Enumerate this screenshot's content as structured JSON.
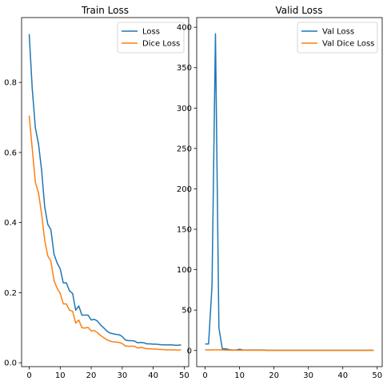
{
  "colors": {
    "series1": "#1f77b4",
    "series2": "#ff7f0e"
  },
  "chart_data": [
    {
      "type": "line",
      "title": "Train Loss",
      "xlabel": "",
      "ylabel": "",
      "xlim": [
        -2.45,
        51.45
      ],
      "ylim": [
        -0.011,
        0.985
      ],
      "xticks": [
        0,
        10,
        20,
        30,
        40,
        50
      ],
      "yticks": [
        0.0,
        0.2,
        0.4,
        0.6,
        0.8
      ],
      "xtick_labels": [
        "0",
        "10",
        "20",
        "30",
        "40",
        "50"
      ],
      "ytick_labels": [
        "0.0",
        "0.2",
        "0.4",
        "0.6",
        "0.8"
      ],
      "legend_position": "upper right",
      "x": [
        0,
        1,
        2,
        3,
        4,
        5,
        6,
        7,
        8,
        9,
        10,
        11,
        12,
        13,
        14,
        15,
        16,
        17,
        18,
        19,
        20,
        21,
        22,
        23,
        24,
        25,
        26,
        27,
        28,
        29,
        30,
        31,
        32,
        33,
        34,
        35,
        36,
        37,
        38,
        39,
        40,
        41,
        42,
        43,
        44,
        45,
        46,
        47,
        48,
        49
      ],
      "series": [
        {
          "name": "Loss",
          "values": [
            0.938,
            0.78,
            0.67,
            0.625,
            0.55,
            0.445,
            0.395,
            0.38,
            0.31,
            0.285,
            0.268,
            0.228,
            0.228,
            0.205,
            0.198,
            0.15,
            0.162,
            0.136,
            0.136,
            0.136,
            0.122,
            0.124,
            0.119,
            0.108,
            0.1,
            0.091,
            0.085,
            0.083,
            0.081,
            0.08,
            0.075,
            0.065,
            0.063,
            0.063,
            0.062,
            0.057,
            0.058,
            0.057,
            0.054,
            0.054,
            0.053,
            0.053,
            0.052,
            0.051,
            0.051,
            0.051,
            0.051,
            0.05,
            0.05,
            0.051
          ]
        },
        {
          "name": "Dice Loss",
          "values": [
            0.705,
            0.61,
            0.515,
            0.485,
            0.425,
            0.35,
            0.305,
            0.29,
            0.235,
            0.213,
            0.198,
            0.168,
            0.168,
            0.15,
            0.147,
            0.113,
            0.122,
            0.1,
            0.099,
            0.101,
            0.091,
            0.092,
            0.086,
            0.078,
            0.072,
            0.066,
            0.062,
            0.06,
            0.059,
            0.058,
            0.055,
            0.048,
            0.047,
            0.047,
            0.047,
            0.042,
            0.044,
            0.042,
            0.04,
            0.04,
            0.039,
            0.039,
            0.038,
            0.038,
            0.037,
            0.037,
            0.037,
            0.037,
            0.036,
            0.037
          ]
        }
      ]
    },
    {
      "type": "line",
      "title": "Valid Loss",
      "xlabel": "",
      "ylabel": "",
      "xlim": [
        -2.45,
        51.45
      ],
      "ylim": [
        -20,
        412
      ],
      "xticks": [
        0,
        10,
        20,
        30,
        40,
        50
      ],
      "yticks": [
        0,
        50,
        100,
        150,
        200,
        250,
        300,
        350,
        400
      ],
      "xtick_labels": [
        "0",
        "10",
        "20",
        "30",
        "40",
        "50"
      ],
      "ytick_labels": [
        "0",
        "50",
        "100",
        "150",
        "200",
        "250",
        "300",
        "350",
        "400"
      ],
      "legend_position": "upper right",
      "x": [
        0,
        1,
        2,
        3,
        4,
        5,
        6,
        7,
        8,
        9,
        10,
        11,
        12,
        13,
        14,
        15,
        16,
        17,
        18,
        19,
        20,
        21,
        22,
        23,
        24,
        25,
        26,
        27,
        28,
        29,
        30,
        31,
        32,
        33,
        34,
        35,
        36,
        37,
        38,
        39,
        40,
        41,
        42,
        43,
        44,
        45,
        46,
        47,
        48,
        49
      ],
      "series": [
        {
          "name": "Val Loss",
          "values": [
            8,
            8,
            80,
            392,
            28,
            2,
            2,
            1,
            0.5,
            0.5,
            1.5,
            0.5,
            0.5,
            0.5,
            0.5,
            0.5,
            0.5,
            0.5,
            0.3,
            0.3,
            0.3,
            0.3,
            0.3,
            0.3,
            0.3,
            0.3,
            0.3,
            0.3,
            0.3,
            0.3,
            0.3,
            0.3,
            0.3,
            0.3,
            0.3,
            0.3,
            0.3,
            0.3,
            0.3,
            0.3,
            0.3,
            0.3,
            0.3,
            0.3,
            0.3,
            0.3,
            0.3,
            0.3,
            0.3,
            0.3
          ]
        },
        {
          "name": "Val Dice Loss",
          "values": [
            0.7,
            0.7,
            0.7,
            0.7,
            0.7,
            0.6,
            0.5,
            0.4,
            0.3,
            0.3,
            0.3,
            0.3,
            0.3,
            0.3,
            0.3,
            0.3,
            0.3,
            0.3,
            0.2,
            0.2,
            0.2,
            0.2,
            0.2,
            0.2,
            0.2,
            0.2,
            0.2,
            0.2,
            0.2,
            0.2,
            0.2,
            0.2,
            0.2,
            0.2,
            0.2,
            0.2,
            0.2,
            0.2,
            0.2,
            0.2,
            0.2,
            0.2,
            0.2,
            0.2,
            0.2,
            0.2,
            0.2,
            0.2,
            0.2,
            0.2
          ]
        }
      ]
    }
  ]
}
